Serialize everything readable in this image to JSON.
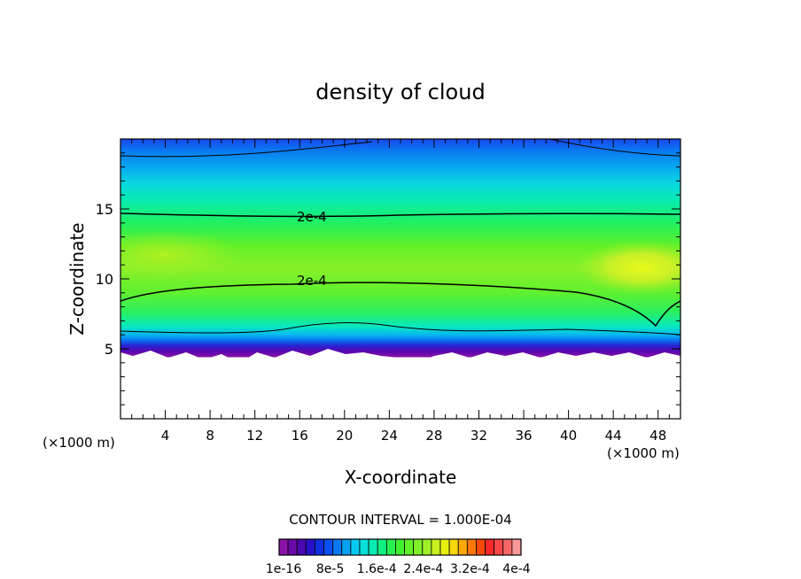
{
  "chart_data": {
    "type": "heatmap",
    "title": "density of cloud",
    "xlabel": "X-coordinate",
    "ylabel": "Z-coordinate",
    "x_unit_left": "(×1000 m)",
    "x_unit_right": "(×1000 m)",
    "xlim": [
      0,
      50
    ],
    "ylim": [
      0,
      20
    ],
    "xticks": [
      4,
      8,
      12,
      16,
      20,
      24,
      28,
      32,
      36,
      40,
      44,
      48
    ],
    "yticks": [
      5,
      10,
      15
    ],
    "contour_interval_label": "CONTOUR INTERVAL = 1.000E-04",
    "contour_labels": [
      {
        "text": "2e-4",
        "x": 17.0,
        "z": 14.5
      },
      {
        "text": "2e-4",
        "x": 17.0,
        "z": 9.95
      }
    ],
    "colorbar": {
      "levels": 27,
      "tick_labels": [
        "1e-16",
        "8e-5",
        "1.6e-4",
        "2.4e-4",
        "3.2e-4",
        "4e-4"
      ],
      "colors": [
        "#8a12a8",
        "#6a0aa8",
        "#4a08b0",
        "#2a10c8",
        "#1030e0",
        "#0a50f0",
        "#0a78f0",
        "#08a0f0",
        "#08c8f0",
        "#08e0d8",
        "#08ecb0",
        "#10f080",
        "#28f050",
        "#40f030",
        "#60f028",
        "#80f028",
        "#a0f028",
        "#c8f020",
        "#e8f010",
        "#f8d808",
        "#f8a808",
        "#f87808",
        "#f84808",
        "#f82828",
        "#f84848",
        "#f86868",
        "#f89898"
      ]
    },
    "field": {
      "cloud_base_z": 4.5,
      "cloud_top_z": 19.6,
      "max_region": {
        "x": 47,
        "z": 11.0
      }
    }
  }
}
